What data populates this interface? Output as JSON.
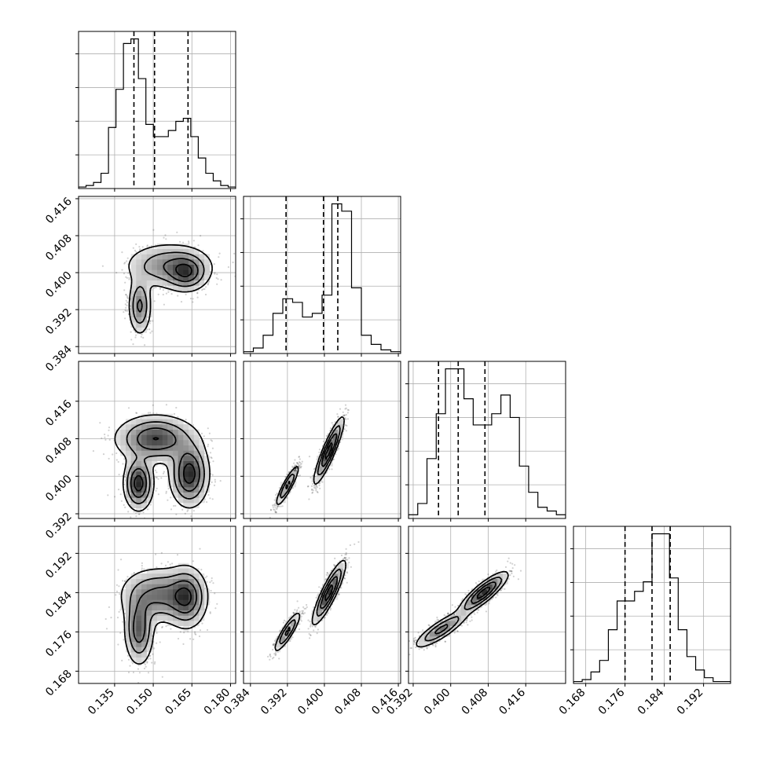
{
  "chart_data": {
    "type": "corner",
    "title": "",
    "grid": true,
    "parameters": [
      {
        "range": [
          0.121,
          0.182
        ],
        "ticks": [
          0.135,
          0.15,
          0.165,
          0.18
        ],
        "tick_labels": [
          "0.135",
          "0.150",
          "0.165",
          "0.180"
        ],
        "quantiles": [
          0.1425,
          0.1505,
          0.1635
        ],
        "hist": [
          1,
          2,
          4,
          10,
          40,
          65,
          95,
          98,
          72,
          42,
          34,
          34,
          38,
          44,
          46,
          34,
          20,
          10,
          5,
          2,
          1
        ]
      },
      {
        "range": [
          0.3825,
          0.4165
        ],
        "ticks": [
          0.384,
          0.392,
          0.4,
          0.408,
          0.416
        ],
        "tick_labels": [
          "0.384",
          "0.392",
          "0.400",
          "0.408",
          "0.416"
        ],
        "quantiles": [
          0.3917,
          0.3998,
          0.4029
        ],
        "hist": [
          1,
          3,
          10,
          22,
          30,
          28,
          20,
          22,
          32,
          82,
          78,
          36,
          10,
          5,
          2,
          1
        ]
      },
      {
        "range": [
          0.391,
          0.4245
        ],
        "ticks": [
          0.392,
          0.4,
          0.408,
          0.416
        ],
        "tick_labels": [
          "0.392",
          "0.400",
          "0.408",
          "0.416"
        ],
        "quantiles": [
          0.3974,
          0.4016,
          0.4073
        ],
        "hist": [
          1,
          4,
          16,
          28,
          40,
          40,
          32,
          25,
          25,
          28,
          33,
          27,
          14,
          7,
          3,
          2,
          1
        ]
      },
      {
        "range": [
          0.1655,
          0.1975
        ],
        "ticks": [
          0.168,
          0.176,
          0.184,
          0.192
        ],
        "tick_labels": [
          "0.168",
          "0.176",
          "0.184",
          "0.192"
        ],
        "quantiles": [
          0.176,
          0.1815,
          0.1852
        ],
        "hist": [
          1,
          2,
          6,
          12,
          28,
          43,
          43,
          48,
          53,
          78,
          78,
          55,
          28,
          14,
          7,
          3,
          1,
          1
        ]
      }
    ],
    "joint_modes": {
      "1_0": [
        [
          0.1448,
          0.3928,
          0.0014,
          0.002,
          0.35
        ],
        [
          0.156,
          0.4015,
          0.0055,
          0.0016,
          0.3
        ],
        [
          0.163,
          0.4,
          0.0026,
          0.0013,
          0.35
        ]
      ],
      "2_0": [
        [
          0.1443,
          0.3985,
          0.0018,
          0.0018,
          0.35
        ],
        [
          0.151,
          0.408,
          0.005,
          0.0016,
          0.3
        ],
        [
          0.164,
          0.4005,
          0.0024,
          0.0022,
          0.35
        ]
      ],
      "3_0": [
        [
          0.1445,
          0.1765,
          0.0018,
          0.0023,
          0.35
        ],
        [
          0.152,
          0.1835,
          0.0048,
          0.0018,
          0.3
        ],
        [
          0.163,
          0.183,
          0.0025,
          0.002,
          0.35
        ]
      ],
      "2_1": [
        [
          0.392,
          0.398,
          0.0008,
          0.0014,
          0.4
        ],
        [
          0.401,
          0.4055,
          0.001,
          0.0022,
          0.6
        ]
      ],
      "3_1": [
        [
          0.392,
          0.176,
          0.0009,
          0.0013,
          0.4
        ],
        [
          0.401,
          0.184,
          0.0011,
          0.002,
          0.6
        ]
      ],
      "3_2": [
        [
          0.398,
          0.1765,
          0.0018,
          0.0012,
          0.4
        ],
        [
          0.407,
          0.184,
          0.0016,
          0.0013,
          0.6
        ]
      ]
    },
    "joint_correlation": {
      "2_1": 0.9,
      "3_1": 0.88,
      "3_2": 0.85
    }
  }
}
